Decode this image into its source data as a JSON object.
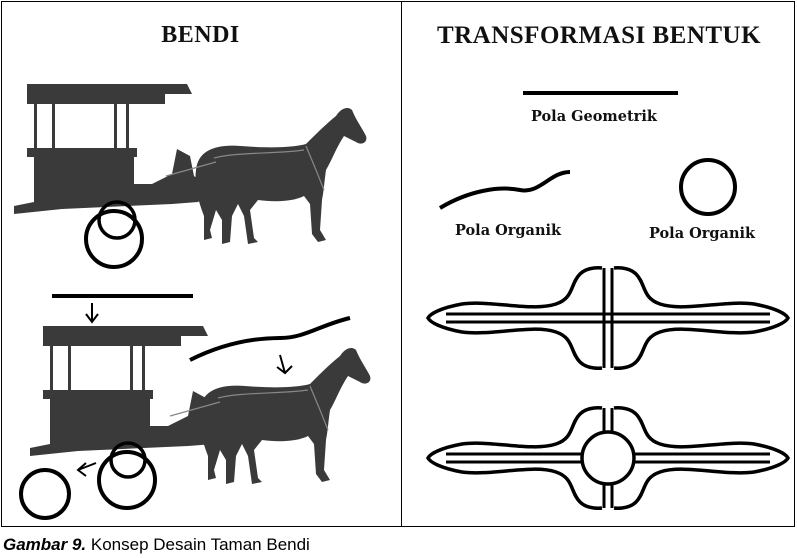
{
  "left_panel": {
    "title": "BENDI"
  },
  "right_panel": {
    "title": "TRANSFORMASI BENTUK",
    "labels": {
      "geometric": "Pola Geometrik",
      "organic_wave": "Pola Organik",
      "organic_circle": "Pola Organik"
    }
  },
  "caption": {
    "label": "Gambar 9.",
    "text": "Konsep Desain Taman Bendi"
  },
  "colors": {
    "ink": "#000000",
    "fill": "#3a3a3a",
    "background": "#ffffff"
  }
}
